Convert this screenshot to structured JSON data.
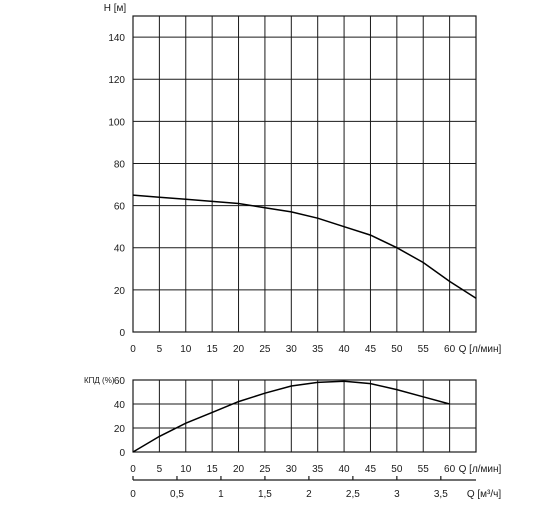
{
  "chart_data": [
    {
      "type": "line",
      "title": "",
      "ylabel": "H [м]",
      "xlabel": "Q [л/мин]",
      "xlim": [
        0,
        65
      ],
      "ylim": [
        0,
        150
      ],
      "x_ticks": [
        "0",
        "5",
        "10",
        "15",
        "20",
        "25",
        "30",
        "35",
        "40",
        "45",
        "50",
        "55",
        "60"
      ],
      "y_ticks": [
        "0",
        "20",
        "40",
        "60",
        "80",
        "100",
        "120",
        "140"
      ],
      "grid": true,
      "series": [
        {
          "x": [
            0,
            5,
            10,
            15,
            20,
            25,
            30,
            35,
            40,
            45,
            50,
            55,
            60,
            65
          ],
          "y": [
            65,
            64,
            63,
            62,
            61,
            59,
            57,
            54,
            50,
            46,
            40,
            33,
            24,
            16
          ]
        }
      ]
    },
    {
      "type": "line",
      "title": "",
      "ylabel": "КПД (%)",
      "xlabel": "Q [л/мин]",
      "xlim": [
        0,
        65
      ],
      "ylim": [
        0,
        60
      ],
      "x_ticks": [
        "0",
        "5",
        "10",
        "15",
        "20",
        "25",
        "30",
        "35",
        "40",
        "45",
        "50",
        "55",
        "60"
      ],
      "y_ticks": [
        "0",
        "20",
        "40",
        "60"
      ],
      "grid": true,
      "series": [
        {
          "x": [
            0,
            5,
            10,
            15,
            20,
            25,
            30,
            35,
            40,
            45,
            50,
            55,
            60
          ],
          "y": [
            0,
            13,
            24,
            33,
            42,
            49,
            55,
            58,
            59,
            57,
            52,
            46,
            40
          ]
        }
      ]
    },
    {
      "type": "axis",
      "xlabel": "Q [м³/ч]",
      "x_ticks": [
        "0",
        "0,5",
        "1",
        "1,5",
        "2",
        "2,5",
        "3",
        "3,5"
      ],
      "x_values": [
        0,
        0.5,
        1,
        1.5,
        2,
        2.5,
        3,
        3.5
      ]
    }
  ]
}
